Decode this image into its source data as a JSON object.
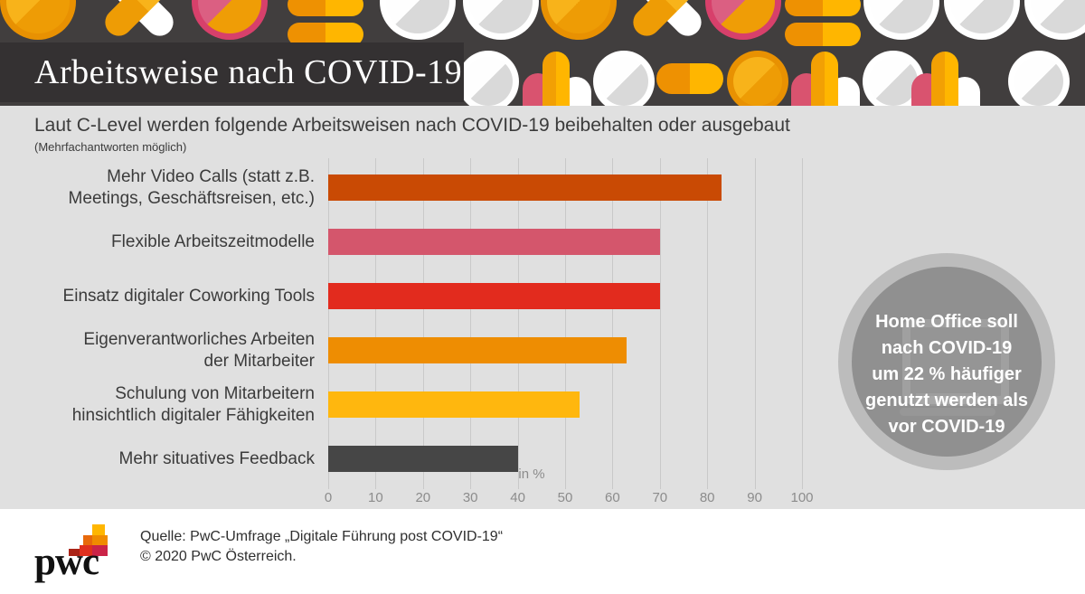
{
  "header": {
    "title": "Arbeitsweise nach COVID-19"
  },
  "subtitle": "Laut C-Level werden folgende Arbeitsweisen nach COVID-19 beibehalten oder ausgebaut",
  "subtitle_note": "(Mehrfachantworten möglich)",
  "chart_data": {
    "type": "bar",
    "orientation": "horizontal",
    "title": "Laut C-Level werden folgende Arbeitsweisen nach COVID-19 beibehalten oder ausgebaut",
    "categories": [
      "Mehr Video Calls (statt z.B.\nMeetings, Geschäftsreisen, etc.)",
      "Flexible Arbeitszeitmodelle",
      "Einsatz digitaler Coworking Tools",
      "Eigenverantworliches Arbeiten\nder Mitarbeiter",
      "Schulung von Mitarbeitern\nhinsichtlich digitaler Fähigkeiten",
      "Mehr situatives Feedback"
    ],
    "values": [
      83,
      70,
      70,
      63,
      53,
      40
    ],
    "bar_colors": [
      "#C94A04",
      "#D4566C",
      "#E22B1E",
      "#EE8D02",
      "#FFB70E",
      "#464646"
    ],
    "xlabel": "in %",
    "xlim": [
      0,
      100
    ],
    "xticks": [
      0,
      10,
      20,
      30,
      40,
      50,
      60,
      70,
      80,
      90,
      100
    ],
    "grid": true,
    "legend": false
  },
  "callout": {
    "text": "Home Office soll\nnach COVID-19\num 22 % häufiger\ngenutzt werden als\nvor COVID-19"
  },
  "footer": {
    "logo_text": "pwc",
    "source": "Quelle: PwC-Umfrage „Digitale Führung post COVID-19“",
    "copyright": "© 2020 PwC Österreich."
  },
  "colors": {
    "header_band": "#413E3E",
    "title_bar": "#343132",
    "panel": "#E0E0E0",
    "gridline": "#C9C9C9",
    "axis_text": "#8C8C8C",
    "label_text": "#3B3B3B",
    "callout_outer": "#BCBCBC",
    "callout_inner": "#909090",
    "footer_bg": "#FFFFFF"
  }
}
